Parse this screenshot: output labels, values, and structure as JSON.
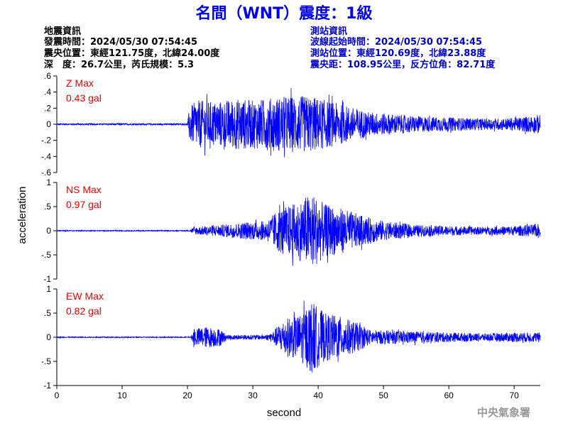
{
  "title": "名間（WNT）震度：1級",
  "quake_info": {
    "heading": "地震資訊",
    "time": "發震時間：2024/05/30 07:54:45",
    "position": "震央位置：東經121.75度，北緯24.00度",
    "depth_magnitude": "深　度：26.7公里，芮氏規模：5.3"
  },
  "station_info": {
    "heading": "測站資訊",
    "wave_start": "波線起始時間：2024/05/30 07:54:45",
    "position": "測站位置：東經120.69度，北緯23.88度",
    "distance": "震央距：108.95公里，反方位角：82.71度"
  },
  "footer": "中央氣象署",
  "colors": {
    "title": "#0000ee",
    "trace": "#0000ff",
    "max_label": "#ee0000",
    "station_info": "#0000cc",
    "footer": "#999999"
  },
  "chart_data": {
    "type": "line",
    "xlabel": "second",
    "ylabel": "acceleration",
    "xlim": [
      0,
      74
    ],
    "x_ticks": [
      0,
      10,
      20,
      30,
      40,
      50,
      60,
      70
    ],
    "grid": false,
    "panels": [
      {
        "component": "Z",
        "max_title": "Z Max",
        "max_value": "0.43 gal",
        "ylim": [
          -0.6,
          0.6
        ],
        "y_ticks": [
          -0.6,
          -0.4,
          -0.2,
          0,
          0.2,
          0.4,
          0.6
        ],
        "envelope": [
          [
            0,
            0.01
          ],
          [
            20.0,
            0.01
          ],
          [
            20.3,
            0.22
          ],
          [
            21.5,
            0.3
          ],
          [
            24,
            0.28
          ],
          [
            28,
            0.32
          ],
          [
            30,
            0.3
          ],
          [
            35,
            0.35
          ],
          [
            39,
            0.35
          ],
          [
            42,
            0.28
          ],
          [
            48,
            0.15
          ],
          [
            55,
            0.1
          ],
          [
            62,
            0.08
          ],
          [
            66,
            0.07
          ],
          [
            70,
            0.08
          ],
          [
            74,
            0.12
          ]
        ]
      },
      {
        "component": "NS",
        "max_title": "NS Max",
        "max_value": "0.97 gal",
        "ylim": [
          -1,
          1
        ],
        "y_ticks": [
          -1,
          -0.5,
          0,
          0.5,
          1
        ],
        "envelope": [
          [
            0,
            0.01
          ],
          [
            20.3,
            0.01
          ],
          [
            21,
            0.08
          ],
          [
            25,
            0.12
          ],
          [
            29,
            0.18
          ],
          [
            32,
            0.2
          ],
          [
            34,
            0.45
          ],
          [
            37,
            0.6
          ],
          [
            39,
            0.8
          ],
          [
            41,
            0.55
          ],
          [
            44,
            0.45
          ],
          [
            47,
            0.3
          ],
          [
            50,
            0.2
          ],
          [
            55,
            0.12
          ],
          [
            65,
            0.08
          ],
          [
            70,
            0.1
          ],
          [
            74,
            0.14
          ]
        ]
      },
      {
        "component": "EW",
        "max_title": "EW Max",
        "max_value": "0.82 gal",
        "ylim": [
          -1,
          1
        ],
        "y_ticks": [
          -1,
          -0.5,
          0,
          0.5,
          1
        ],
        "envelope": [
          [
            0,
            0.01
          ],
          [
            20.5,
            0.01
          ],
          [
            21,
            0.18
          ],
          [
            23,
            0.22
          ],
          [
            25,
            0.18
          ],
          [
            26,
            0.05
          ],
          [
            32,
            0.05
          ],
          [
            33,
            0.12
          ],
          [
            35,
            0.4
          ],
          [
            37,
            0.45
          ],
          [
            39,
            0.75
          ],
          [
            41,
            0.5
          ],
          [
            43,
            0.45
          ],
          [
            46,
            0.3
          ],
          [
            48,
            0.15
          ],
          [
            55,
            0.12
          ],
          [
            65,
            0.08
          ],
          [
            70,
            0.1
          ],
          [
            74,
            0.1
          ]
        ]
      }
    ]
  }
}
